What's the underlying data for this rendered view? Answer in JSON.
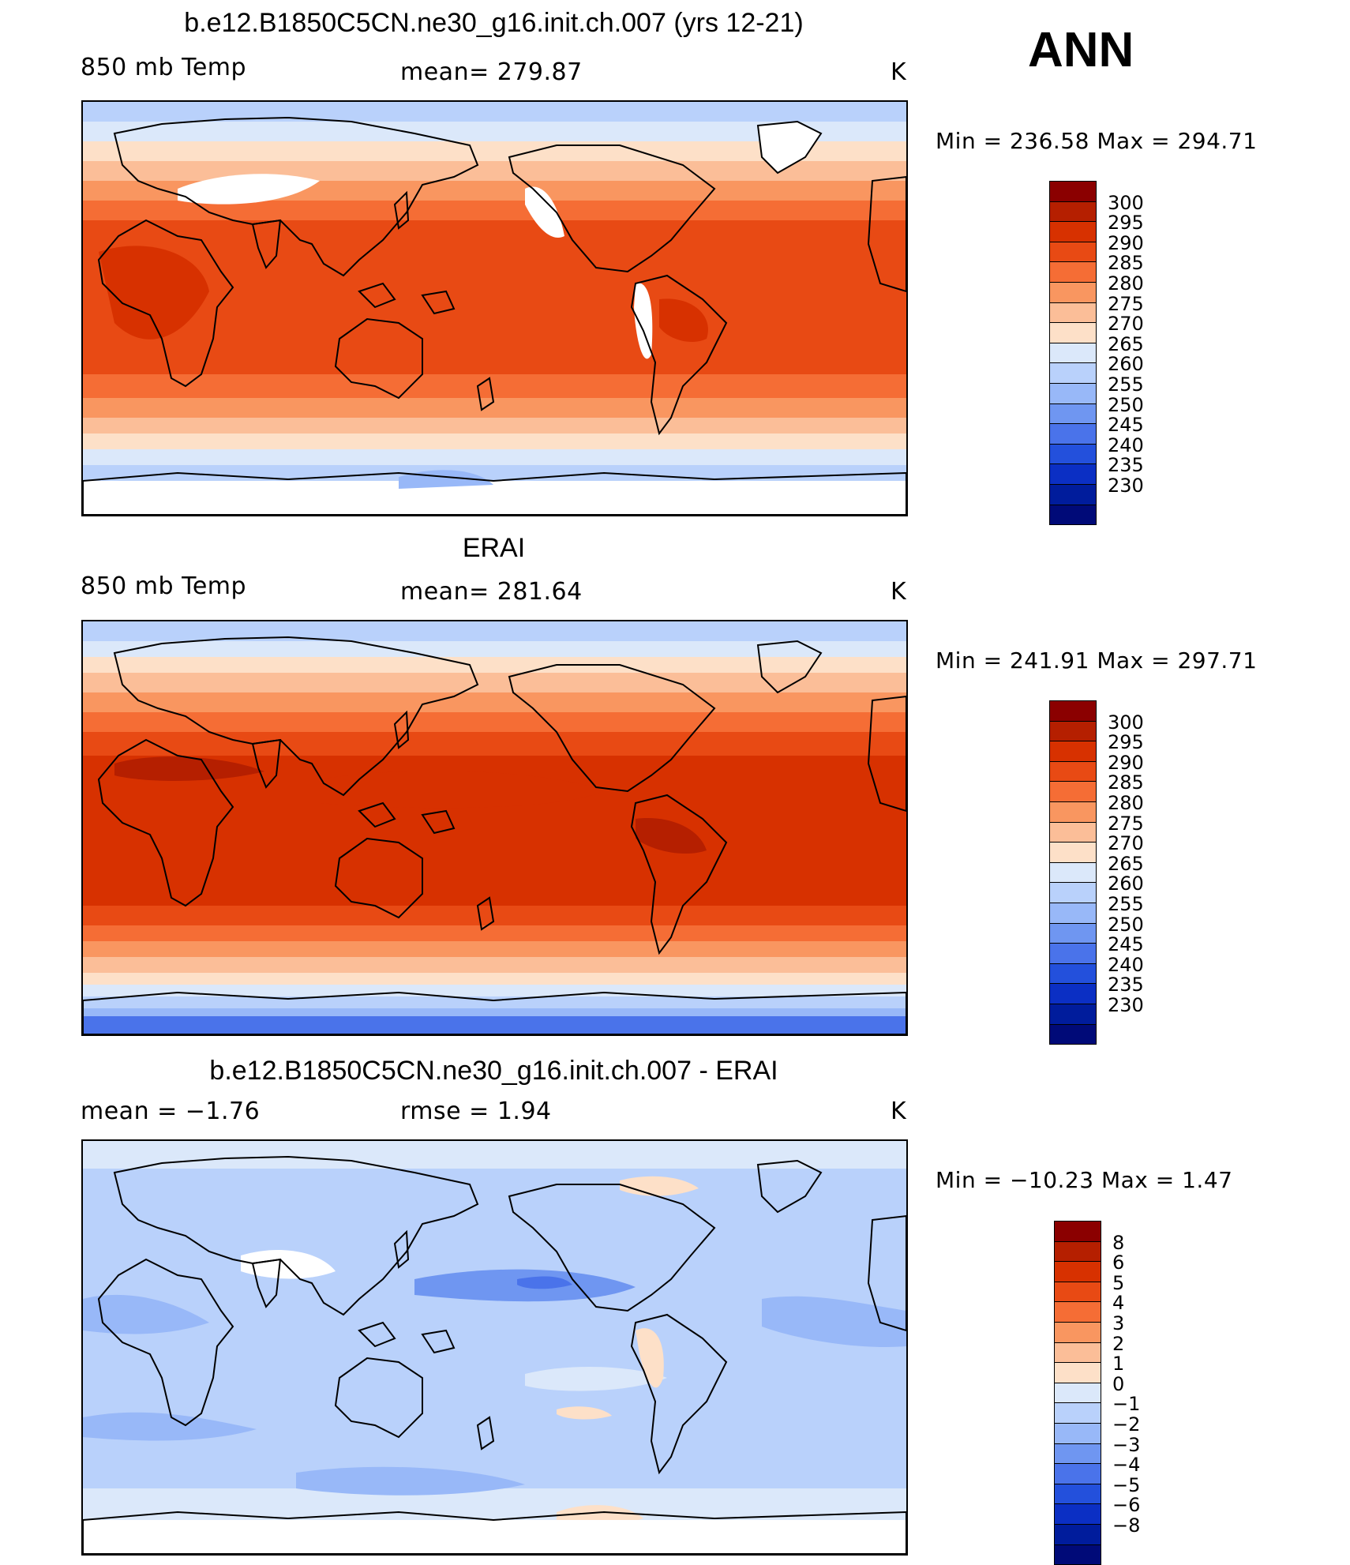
{
  "season": "ANN",
  "panels": [
    {
      "title": "b.e12.B1850C5CN.ne30_g16.init.ch.007 (yrs 12-21)",
      "left_label": "850 mb Temp",
      "center_label": "mean=  279.87",
      "units": "K",
      "minmax": "Min  =  236.58  Max  =  294.71",
      "scheme": "abs",
      "map_type": "model"
    },
    {
      "title": "ERAI",
      "left_label": "850 mb Temp",
      "center_label": "mean=  281.64",
      "units": "K",
      "minmax": "Min  =  241.91  Max  =  297.71",
      "scheme": "abs",
      "map_type": "obs"
    },
    {
      "title": "b.e12.B1850C5CN.ne30_g16.init.ch.007 - ERAI",
      "left_label": "mean =    −1.76",
      "center_label": "rmse =     1.94",
      "units": "K",
      "minmax": "Min  =  −10.23  Max  =     1.47",
      "scheme": "diff",
      "map_type": "diff"
    }
  ],
  "colorbars": {
    "abs": {
      "labels": [
        "300",
        "295",
        "290",
        "285",
        "280",
        "275",
        "270",
        "265",
        "260",
        "255",
        "250",
        "245",
        "240",
        "235",
        "230"
      ],
      "colors": [
        "#8b0000",
        "#b51f00",
        "#d73100",
        "#e84a14",
        "#f56d35",
        "#f99660",
        "#fbbe98",
        "#fde0c8",
        "#dbe8fa",
        "#b9d1fb",
        "#98b8f8",
        "#6f96f1",
        "#4a73ea",
        "#2350dc",
        "#0b2fc4",
        "#001c9c",
        "#000a78"
      ]
    },
    "diff": {
      "labels": [
        "8",
        "6",
        "5",
        "4",
        "3",
        "2",
        "1",
        "0",
        "−1",
        "−2",
        "−3",
        "−4",
        "−5",
        "−6",
        "−8"
      ],
      "colors": [
        "#8b0000",
        "#b51f00",
        "#d73100",
        "#e84a14",
        "#f56d35",
        "#f99660",
        "#fbbe98",
        "#fde0c8",
        "#dbe8fa",
        "#b9d1fb",
        "#98b8f8",
        "#6f96f1",
        "#4a73ea",
        "#2350dc",
        "#0b2fc4",
        "#001c9c",
        "#000a78"
      ]
    }
  }
}
